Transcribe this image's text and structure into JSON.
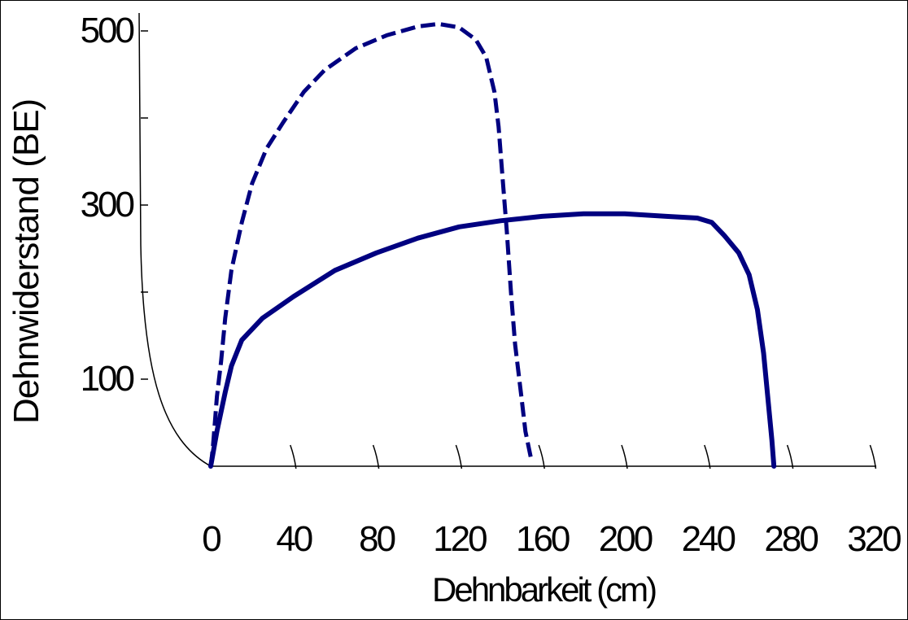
{
  "chart_data": {
    "type": "line",
    "xlabel": "Dehnbarkeit (cm)",
    "ylabel": "Dehnwiderstand (BE)",
    "xlim": [
      0,
      320
    ],
    "ylim": [
      0,
      520
    ],
    "x_ticks": [
      "0",
      "40",
      "80",
      "120",
      "160",
      "200",
      "240",
      "280",
      "320"
    ],
    "y_ticks": [
      "100",
      "300",
      "500"
    ],
    "grid": false,
    "legend": "none",
    "series": [
      {
        "style": "dashed",
        "color": "#000080",
        "points": [
          [
            0,
            0
          ],
          [
            1,
            20
          ],
          [
            2,
            50
          ],
          [
            3,
            80
          ],
          [
            5,
            120
          ],
          [
            7,
            170
          ],
          [
            10,
            225
          ],
          [
            15,
            280
          ],
          [
            20,
            325
          ],
          [
            27,
            365
          ],
          [
            35,
            395
          ],
          [
            45,
            430
          ],
          [
            55,
            455
          ],
          [
            70,
            480
          ],
          [
            85,
            495
          ],
          [
            100,
            505
          ],
          [
            110,
            508
          ],
          [
            120,
            504
          ],
          [
            128,
            490
          ],
          [
            133,
            470
          ],
          [
            137,
            430
          ],
          [
            139,
            390
          ],
          [
            141,
            330
          ],
          [
            143,
            270
          ],
          [
            145,
            200
          ],
          [
            147,
            140
          ],
          [
            150,
            80
          ],
          [
            152,
            40
          ],
          [
            155,
            5
          ]
        ]
      },
      {
        "style": "solid",
        "color": "#000080",
        "points": [
          [
            0,
            0
          ],
          [
            3,
            40
          ],
          [
            7,
            85
          ],
          [
            10,
            115
          ],
          [
            15,
            145
          ],
          [
            25,
            170
          ],
          [
            40,
            195
          ],
          [
            60,
            225
          ],
          [
            80,
            245
          ],
          [
            100,
            262
          ],
          [
            120,
            275
          ],
          [
            140,
            282
          ],
          [
            160,
            287
          ],
          [
            180,
            290
          ],
          [
            200,
            290
          ],
          [
            220,
            287
          ],
          [
            235,
            285
          ],
          [
            242,
            280
          ],
          [
            248,
            265
          ],
          [
            255,
            245
          ],
          [
            260,
            220
          ],
          [
            264,
            180
          ],
          [
            267,
            130
          ],
          [
            269,
            80
          ],
          [
            271,
            30
          ],
          [
            272,
            0
          ]
        ]
      }
    ]
  }
}
